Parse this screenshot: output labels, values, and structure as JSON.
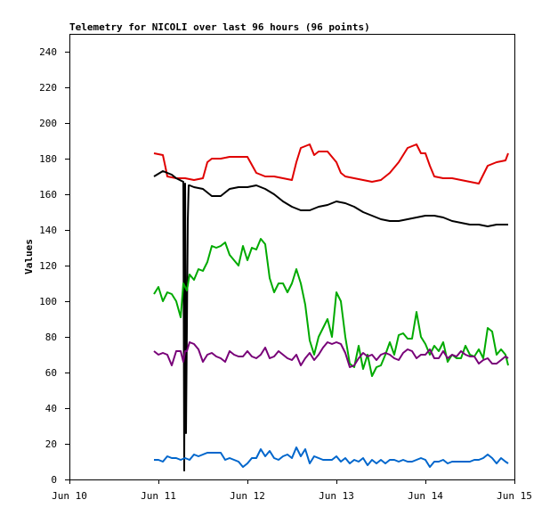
{
  "chart_data": {
    "type": "line",
    "title": "Telemetry for NICOLI over last 96 hours (96 points)",
    "xlabel": "",
    "ylabel": "Values",
    "xlim": [
      0,
      5
    ],
    "ylim": [
      0,
      250
    ],
    "x_ticks": [
      {
        "x": 0,
        "label": "Jun 10"
      },
      {
        "x": 1,
        "label": "Jun 11"
      },
      {
        "x": 2,
        "label": "Jun 12"
      },
      {
        "x": 3,
        "label": "Jun 13"
      },
      {
        "x": 4,
        "label": "Jun 14"
      },
      {
        "x": 5,
        "label": "Jun 15"
      }
    ],
    "y_ticks": [
      0,
      20,
      40,
      60,
      80,
      100,
      120,
      140,
      160,
      180,
      200,
      220,
      240
    ],
    "grid": false,
    "legend": "none",
    "series": [
      {
        "color": "#e00000",
        "x": [
          0.95,
          1.05,
          1.08,
          1.1,
          1.2,
          1.3,
          1.4,
          1.5,
          1.55,
          1.6,
          1.7,
          1.8,
          1.9,
          2.0,
          2.1,
          2.2,
          2.3,
          2.4,
          2.5,
          2.55,
          2.6,
          2.7,
          2.75,
          2.8,
          2.9,
          3.0,
          3.05,
          3.1,
          3.2,
          3.3,
          3.4,
          3.5,
          3.6,
          3.7,
          3.8,
          3.9,
          3.95,
          4.0,
          4.05,
          4.1,
          4.2,
          4.3,
          4.4,
          4.5,
          4.6,
          4.7,
          4.8,
          4.9,
          4.93
        ],
        "y": [
          183,
          182,
          175,
          170,
          169,
          169,
          168,
          169,
          178,
          180,
          180,
          181,
          181,
          181,
          172,
          170,
          170,
          169,
          168,
          178,
          186,
          188,
          182,
          184,
          184,
          178,
          172,
          170,
          169,
          168,
          167,
          168,
          172,
          178,
          186,
          188,
          183,
          183,
          176,
          170,
          169,
          169,
          168,
          167,
          166,
          176,
          178,
          179,
          183
        ]
      },
      {
        "color": "#000000",
        "x": [
          0.95,
          1.05,
          1.15,
          1.2,
          1.28,
          1.29,
          1.3,
          1.31,
          1.33,
          1.34,
          1.35,
          1.4,
          1.5,
          1.6,
          1.7,
          1.8,
          1.9,
          2.0,
          2.1,
          2.2,
          2.3,
          2.4,
          2.5,
          2.6,
          2.7,
          2.8,
          2.9,
          3.0,
          3.1,
          3.2,
          3.3,
          3.4,
          3.5,
          3.6,
          3.7,
          3.8,
          3.9,
          4.0,
          4.1,
          4.2,
          4.3,
          4.4,
          4.5,
          4.6,
          4.7,
          4.8,
          4.93
        ],
        "y": [
          170,
          173,
          171,
          169,
          167,
          5,
          166,
          26,
          145,
          165,
          165,
          164,
          163,
          159,
          159,
          163,
          164,
          164,
          165,
          163,
          160,
          156,
          153,
          151,
          151,
          153,
          154,
          156,
          155,
          153,
          150,
          148,
          146,
          145,
          145,
          146,
          147,
          148,
          148,
          147,
          145,
          144,
          143,
          143,
          142,
          143,
          143
        ]
      },
      {
        "color": "#00aa00",
        "x": [
          0.95,
          1.0,
          1.05,
          1.1,
          1.15,
          1.2,
          1.25,
          1.28,
          1.32,
          1.35,
          1.4,
          1.45,
          1.5,
          1.55,
          1.6,
          1.65,
          1.7,
          1.75,
          1.8,
          1.85,
          1.9,
          1.95,
          2.0,
          2.05,
          2.1,
          2.15,
          2.2,
          2.25,
          2.3,
          2.35,
          2.4,
          2.45,
          2.5,
          2.55,
          2.6,
          2.65,
          2.7,
          2.75,
          2.8,
          2.85,
          2.9,
          2.95,
          3.0,
          3.05,
          3.1,
          3.15,
          3.2,
          3.25,
          3.3,
          3.35,
          3.4,
          3.45,
          3.5,
          3.55,
          3.6,
          3.65,
          3.7,
          3.75,
          3.8,
          3.85,
          3.9,
          3.95,
          4.0,
          4.05,
          4.1,
          4.15,
          4.2,
          4.25,
          4.3,
          4.35,
          4.4,
          4.45,
          4.5,
          4.55,
          4.6,
          4.65,
          4.7,
          4.75,
          4.8,
          4.85,
          4.9,
          4.93
        ],
        "y": [
          104,
          108,
          100,
          105,
          104,
          100,
          91,
          110,
          106,
          115,
          112,
          118,
          117,
          122,
          131,
          130,
          131,
          133,
          126,
          123,
          120,
          131,
          123,
          130,
          129,
          135,
          132,
          113,
          105,
          110,
          110,
          105,
          110,
          118,
          110,
          98,
          78,
          70,
          80,
          85,
          90,
          80,
          105,
          100,
          80,
          65,
          63,
          75,
          62,
          70,
          58,
          63,
          64,
          70,
          77,
          70,
          81,
          82,
          79,
          79,
          94,
          80,
          76,
          70,
          75,
          72,
          77,
          66,
          70,
          68,
          68,
          75,
          70,
          69,
          73,
          68,
          85,
          83,
          70,
          73,
          70,
          64
        ]
      },
      {
        "color": "#780078",
        "x": [
          0.95,
          1.0,
          1.05,
          1.1,
          1.15,
          1.2,
          1.25,
          1.28,
          1.3,
          1.32,
          1.35,
          1.4,
          1.45,
          1.5,
          1.55,
          1.6,
          1.65,
          1.7,
          1.75,
          1.8,
          1.85,
          1.9,
          1.95,
          2.0,
          2.05,
          2.1,
          2.15,
          2.2,
          2.25,
          2.3,
          2.35,
          2.4,
          2.45,
          2.5,
          2.55,
          2.6,
          2.65,
          2.7,
          2.75,
          2.8,
          2.85,
          2.9,
          2.95,
          3.0,
          3.05,
          3.1,
          3.15,
          3.2,
          3.25,
          3.3,
          3.35,
          3.4,
          3.45,
          3.5,
          3.55,
          3.6,
          3.65,
          3.7,
          3.75,
          3.8,
          3.85,
          3.9,
          3.95,
          4.0,
          4.05,
          4.1,
          4.15,
          4.2,
          4.25,
          4.3,
          4.35,
          4.4,
          4.45,
          4.5,
          4.55,
          4.6,
          4.65,
          4.7,
          4.75,
          4.8,
          4.85,
          4.9,
          4.93
        ],
        "y": [
          72,
          70,
          71,
          70,
          64,
          72,
          72,
          66,
          72,
          72,
          77,
          76,
          73,
          66,
          70,
          71,
          69,
          68,
          66,
          72,
          70,
          69,
          69,
          72,
          69,
          68,
          70,
          74,
          68,
          69,
          72,
          70,
          68,
          67,
          70,
          64,
          68,
          71,
          67,
          70,
          74,
          77,
          76,
          77,
          76,
          71,
          63,
          64,
          68,
          71,
          69,
          70,
          67,
          70,
          71,
          70,
          68,
          67,
          71,
          73,
          72,
          68,
          70,
          70,
          73,
          68,
          68,
          72,
          68,
          70,
          69,
          72,
          70,
          69,
          69,
          65,
          67,
          68,
          65,
          65,
          67,
          69,
          68
        ]
      },
      {
        "color": "#0066cc",
        "x": [
          0.95,
          1.0,
          1.05,
          1.1,
          1.15,
          1.2,
          1.25,
          1.3,
          1.35,
          1.4,
          1.45,
          1.5,
          1.55,
          1.6,
          1.65,
          1.7,
          1.75,
          1.8,
          1.85,
          1.9,
          1.95,
          2.0,
          2.05,
          2.1,
          2.15,
          2.2,
          2.25,
          2.3,
          2.35,
          2.4,
          2.45,
          2.5,
          2.55,
          2.6,
          2.65,
          2.7,
          2.75,
          2.8,
          2.85,
          2.9,
          2.95,
          3.0,
          3.05,
          3.1,
          3.15,
          3.2,
          3.25,
          3.3,
          3.35,
          3.4,
          3.45,
          3.5,
          3.55,
          3.6,
          3.65,
          3.7,
          3.75,
          3.8,
          3.85,
          3.9,
          3.95,
          4.0,
          4.05,
          4.1,
          4.15,
          4.2,
          4.25,
          4.3,
          4.35,
          4.4,
          4.45,
          4.5,
          4.55,
          4.6,
          4.65,
          4.7,
          4.75,
          4.8,
          4.85,
          4.9,
          4.93
        ],
        "y": [
          11,
          11,
          10,
          13,
          12,
          12,
          11,
          12,
          11,
          14,
          13,
          14,
          15,
          15,
          15,
          15,
          11,
          12,
          11,
          10,
          7,
          9,
          12,
          12,
          17,
          13,
          16,
          12,
          11,
          13,
          14,
          12,
          18,
          13,
          17,
          9,
          13,
          12,
          11,
          11,
          11,
          13,
          10,
          12,
          9,
          11,
          10,
          12,
          8,
          11,
          9,
          11,
          9,
          11,
          11,
          10,
          11,
          10,
          10,
          11,
          12,
          11,
          7,
          10,
          10,
          11,
          9,
          10,
          10,
          10,
          10,
          10,
          11,
          11,
          12,
          14,
          12,
          9,
          12,
          10,
          9
        ]
      }
    ]
  }
}
